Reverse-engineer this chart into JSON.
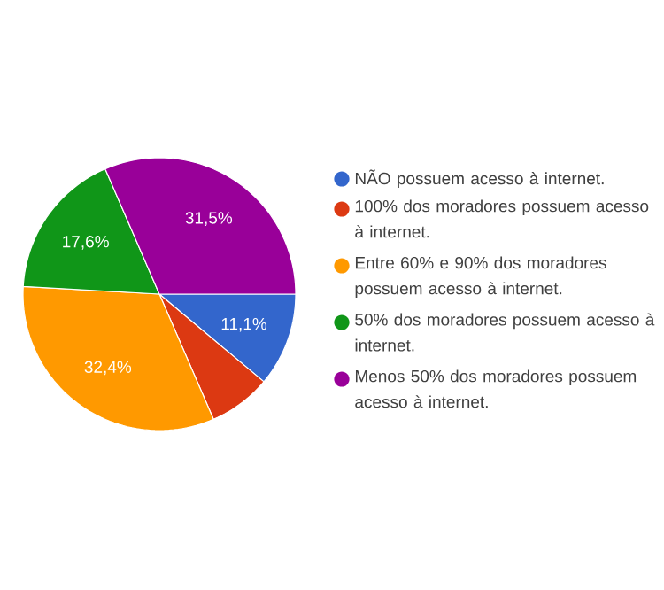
{
  "chart_data": {
    "type": "pie",
    "categories": [
      "NÃO possuem acesso à internet.",
      "100% dos moradores possuem acesso à internet.",
      "Entre 60% e 90% dos moradores possuem acesso à internet.",
      "50% dos moradores possuem acesso à internet.",
      "Menos 50% dos moradores possuem acesso à internet."
    ],
    "values": [
      11.1,
      7.4,
      32.4,
      17.6,
      31.5
    ],
    "colors": [
      "#3366cc",
      "#dc3912",
      "#ff9900",
      "#109618",
      "#990099"
    ],
    "value_labels": [
      "11,1%",
      null,
      "32,4%",
      "17,6%",
      "31,5%"
    ],
    "legend": "right"
  }
}
